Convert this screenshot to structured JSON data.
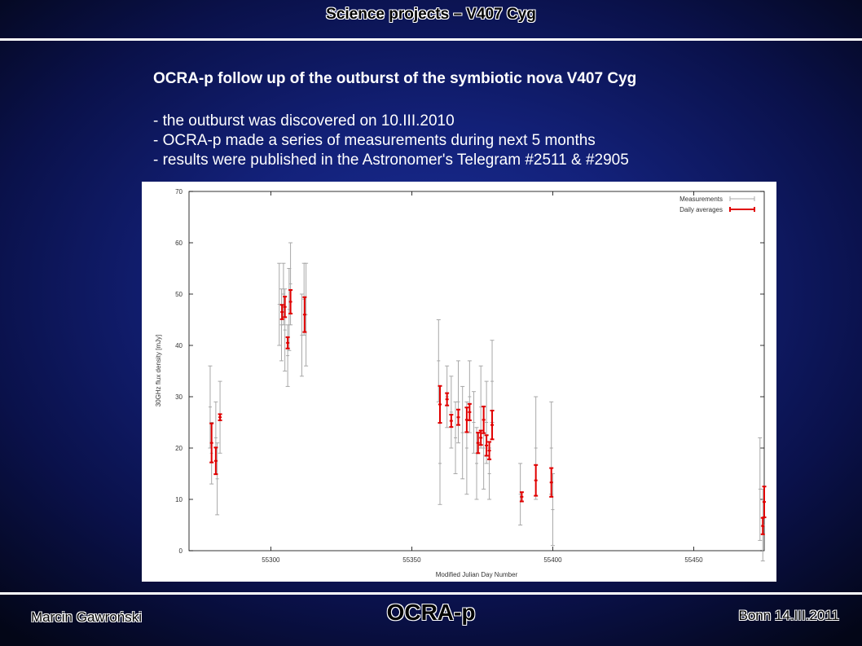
{
  "slide": {
    "title": "Science projects – V407 Cyg",
    "heading": "OCRA-p follow up of the outburst of the symbiotic nova V407 Cyg",
    "bullets": [
      "- the outburst was discovered on 10.III.2010",
      "- OCRA-p made a series of measurements during next 5 months",
      "- results were published in the Astronomer's Telegram #2511 & #2905"
    ],
    "footer": {
      "author": "Marcin Gawroński",
      "logo_text": "OCRA-p",
      "place_date": "Bonn 14.III.2011"
    },
    "colors": {
      "measurements": "#a8a8a8",
      "daily_averages": "#e00000"
    }
  },
  "chart_data": {
    "type": "scatter",
    "title": "",
    "xlabel": "Modified Julian Day Number",
    "ylabel": "30GHz flux density [mJy]",
    "xlim": [
      55271,
      55475
    ],
    "ylim": [
      0,
      70
    ],
    "xticks": [
      55300,
      55350,
      55400,
      55450
    ],
    "yticks": [
      0,
      10,
      20,
      30,
      40,
      50,
      60,
      70
    ],
    "grid": false,
    "legend_position": "top-right",
    "series": [
      {
        "name": "Measurements",
        "style": "errorbar-gray",
        "points": [
          {
            "x": 55278.5,
            "y": 28,
            "err": 8
          },
          {
            "x": 55279,
            "y": 19,
            "err": 6
          },
          {
            "x": 55280.5,
            "y": 22,
            "err": 7
          },
          {
            "x": 55281,
            "y": 14,
            "err": 7
          },
          {
            "x": 55282,
            "y": 26,
            "err": 7
          },
          {
            "x": 55303,
            "y": 48,
            "err": 8
          },
          {
            "x": 55303.8,
            "y": 44,
            "err": 7
          },
          {
            "x": 55304.5,
            "y": 50,
            "err": 6
          },
          {
            "x": 55305,
            "y": 43,
            "err": 8
          },
          {
            "x": 55306,
            "y": 38,
            "err": 6
          },
          {
            "x": 55306.5,
            "y": 47,
            "err": 8
          },
          {
            "x": 55307,
            "y": 52,
            "err": 8
          },
          {
            "x": 55311,
            "y": 42,
            "err": 8
          },
          {
            "x": 55311.8,
            "y": 49,
            "err": 7
          },
          {
            "x": 55312.5,
            "y": 46,
            "err": 10
          },
          {
            "x": 55359.5,
            "y": 37,
            "err": 8
          },
          {
            "x": 55360,
            "y": 17,
            "err": 8
          },
          {
            "x": 55362.5,
            "y": 30,
            "err": 6
          },
          {
            "x": 55364,
            "y": 27,
            "err": 7
          },
          {
            "x": 55365.5,
            "y": 22,
            "err": 7
          },
          {
            "x": 55366.5,
            "y": 29,
            "err": 8
          },
          {
            "x": 55368,
            "y": 23,
            "err": 9
          },
          {
            "x": 55369.5,
            "y": 20,
            "err": 9
          },
          {
            "x": 55370.5,
            "y": 30,
            "err": 7
          },
          {
            "x": 55372,
            "y": 25,
            "err": 6
          },
          {
            "x": 55373,
            "y": 17,
            "err": 7
          },
          {
            "x": 55374.5,
            "y": 28,
            "err": 8
          },
          {
            "x": 55375.5,
            "y": 20,
            "err": 8
          },
          {
            "x": 55376.5,
            "y": 25,
            "err": 8
          },
          {
            "x": 55377.5,
            "y": 15,
            "err": 5
          },
          {
            "x": 55378.5,
            "y": 33,
            "err": 8
          },
          {
            "x": 55388.5,
            "y": 11,
            "err": 6
          },
          {
            "x": 55394,
            "y": 20,
            "err": 10
          },
          {
            "x": 55399.5,
            "y": 20,
            "err": 9
          },
          {
            "x": 55400,
            "y": 8,
            "err": 7
          },
          {
            "x": 55473.5,
            "y": 12,
            "err": 10
          },
          {
            "x": 55474.5,
            "y": 5,
            "err": 7
          }
        ]
      },
      {
        "name": "Daily averages",
        "style": "errorbar-red",
        "points": [
          {
            "x": 55279,
            "y": 21,
            "err": 3.8
          },
          {
            "x": 55280.5,
            "y": 17.5,
            "err": 2.6
          },
          {
            "x": 55282,
            "y": 26,
            "err": 0.6
          },
          {
            "x": 55304,
            "y": 46.5,
            "err": 1.4
          },
          {
            "x": 55305,
            "y": 47.5,
            "err": 2.0
          },
          {
            "x": 55306,
            "y": 40.5,
            "err": 1.1
          },
          {
            "x": 55307,
            "y": 48.5,
            "err": 2.3
          },
          {
            "x": 55312,
            "y": 46,
            "err": 3.4
          },
          {
            "x": 55360,
            "y": 28.5,
            "err": 3.6
          },
          {
            "x": 55362.5,
            "y": 29.5,
            "err": 1.2
          },
          {
            "x": 55364,
            "y": 25.3,
            "err": 1.2
          },
          {
            "x": 55366.5,
            "y": 26,
            "err": 1.5
          },
          {
            "x": 55369.5,
            "y": 25.5,
            "err": 2.4
          },
          {
            "x": 55370.5,
            "y": 27,
            "err": 1.6
          },
          {
            "x": 55373.5,
            "y": 21,
            "err": 2.0
          },
          {
            "x": 55374.5,
            "y": 22,
            "err": 1.4
          },
          {
            "x": 55375.5,
            "y": 25.5,
            "err": 2.6
          },
          {
            "x": 55376.5,
            "y": 20.5,
            "err": 2.0
          },
          {
            "x": 55377.5,
            "y": 19.5,
            "err": 1.7
          },
          {
            "x": 55378.5,
            "y": 24.5,
            "err": 2.8
          },
          {
            "x": 55389,
            "y": 10.5,
            "err": 0.9
          },
          {
            "x": 55394,
            "y": 13.7,
            "err": 3.0
          },
          {
            "x": 55399.5,
            "y": 13.3,
            "err": 2.8
          },
          {
            "x": 55474.5,
            "y": 4.8,
            "err": 1.6
          },
          {
            "x": 55475,
            "y": 9.5,
            "err": 3.0
          }
        ]
      }
    ]
  }
}
